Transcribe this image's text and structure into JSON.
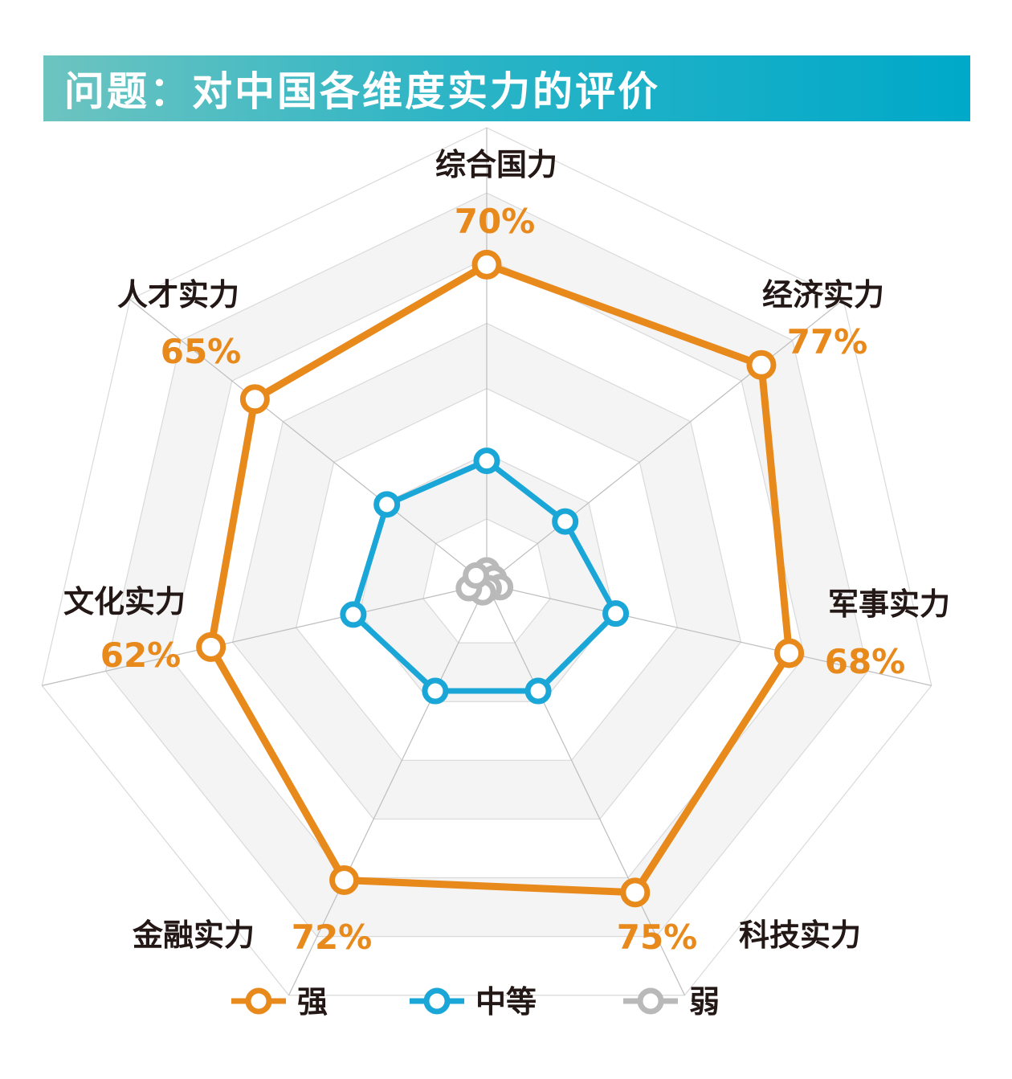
{
  "title": "问题：对中国各维度实力的评价",
  "chart_data": {
    "type": "radar",
    "title": "问题：对中国各维度实力的评价",
    "axes": [
      "综合国力",
      "经济实力",
      "军事实力",
      "科技实力",
      "金融实力",
      "文化实力",
      "人才实力"
    ],
    "range": [
      0,
      100
    ],
    "grid_levels": 7,
    "legend_position": "bottom",
    "series": [
      {
        "name": "强",
        "color": "#e8891c",
        "values": [
          70,
          77,
          68,
          75,
          72,
          62,
          65
        ],
        "labels": [
          "70%",
          "77%",
          "68%",
          "75%",
          "72%",
          "62%",
          "65%"
        ]
      },
      {
        "name": "中等",
        "color": "#1aa7d8",
        "values": [
          27,
          22,
          29,
          26,
          26,
          30,
          28
        ]
      },
      {
        "name": "弱",
        "color": "#b9b9b9",
        "values": [
          3,
          2,
          3,
          1,
          2,
          4,
          3
        ]
      }
    ]
  }
}
